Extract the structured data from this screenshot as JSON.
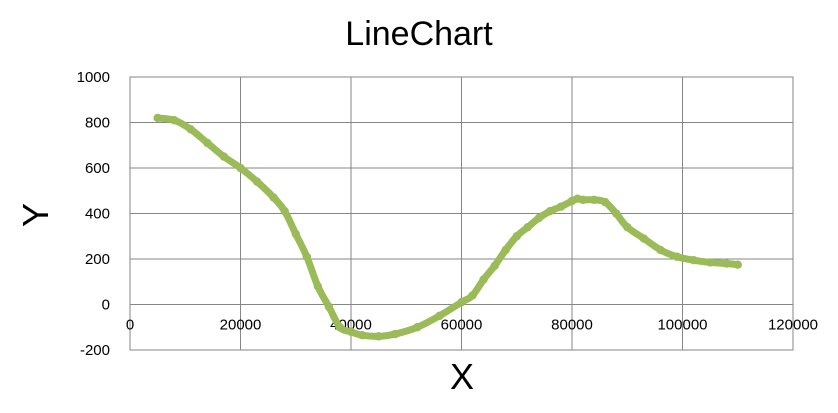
{
  "chart_data": {
    "type": "line",
    "title": "LineChart",
    "xlabel": "X",
    "ylabel": "Y",
    "xlim": [
      0,
      120000
    ],
    "ylim": [
      -200,
      1000
    ],
    "x_ticks": [
      0,
      20000,
      40000,
      60000,
      80000,
      100000,
      120000
    ],
    "x_tick_labels": [
      "0",
      "20000",
      "40000",
      "60000",
      "80000",
      "100000",
      "120000"
    ],
    "y_ticks": [
      -200,
      0,
      200,
      400,
      600,
      800,
      1000
    ],
    "y_tick_labels": [
      "-200",
      "0",
      "200",
      "400",
      "600",
      "800",
      "1000"
    ],
    "grid": true,
    "legend": "none",
    "series": [
      {
        "color": "#9bbb59",
        "x": [
          5000,
          8000,
          11000,
          14000,
          17000,
          20000,
          23000,
          26000,
          28000,
          30000,
          32000,
          34000,
          36000,
          38000,
          40000,
          42000,
          45000,
          48000,
          52000,
          56000,
          60000,
          62000,
          64000,
          66000,
          68000,
          70000,
          72000,
          74000,
          76000,
          78000,
          80000,
          81000,
          82000,
          84000,
          86000,
          88000,
          90000,
          93000,
          96000,
          99000,
          102000,
          105000,
          108000,
          110000
        ],
        "y": [
          820,
          810,
          770,
          710,
          650,
          600,
          540,
          470,
          410,
          310,
          210,
          80,
          -10,
          -100,
          -120,
          -135,
          -140,
          -130,
          -100,
          -50,
          10,
          40,
          110,
          170,
          240,
          300,
          340,
          380,
          410,
          430,
          455,
          465,
          460,
          460,
          450,
          400,
          340,
          290,
          240,
          210,
          195,
          185,
          180,
          175
        ]
      }
    ]
  }
}
